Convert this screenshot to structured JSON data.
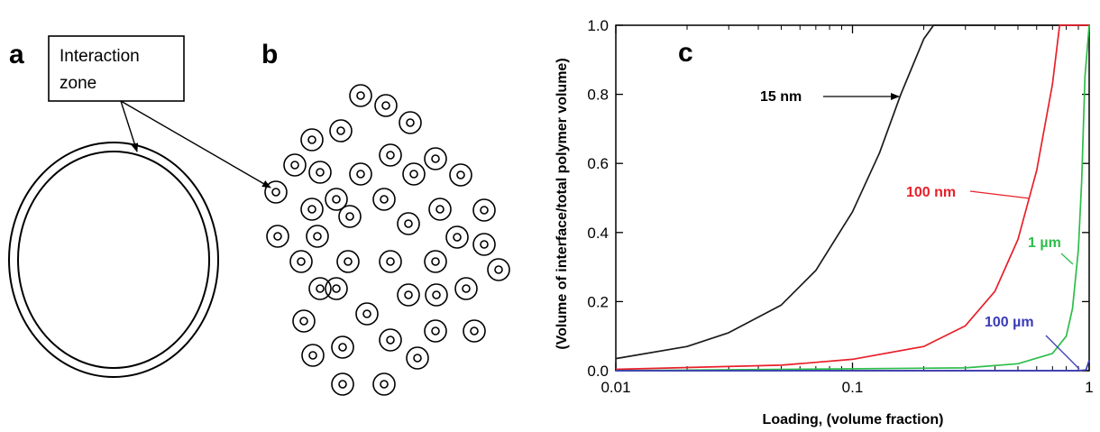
{
  "panel_a": {
    "letter": "a",
    "callout_line1": "Interaction",
    "callout_line2": "zone"
  },
  "panel_b": {
    "letter": "b"
  },
  "panel_c": {
    "letter": "c"
  },
  "chart_data": {
    "type": "line",
    "xlabel": "Loading, (volume fraction)",
    "ylabel": "(Volume of interface/total polymer volume)",
    "xscale": "log",
    "xlim": [
      0.01,
      1
    ],
    "ylim": [
      0,
      1
    ],
    "xticks": [
      0.01,
      0.1,
      1
    ],
    "xtick_labels": [
      "0.01",
      "0.1",
      "1"
    ],
    "yticks": [
      0,
      0.2,
      0.4,
      0.6,
      0.8,
      1.0
    ],
    "ytick_labels": [
      "0.0",
      "0.2",
      "0.4",
      "0.6",
      "0.8",
      "1.0"
    ],
    "grid": false,
    "series": [
      {
        "name": "15 nm",
        "color": "#1a1a1a",
        "x": [
          0.01,
          0.02,
          0.03,
          0.05,
          0.07,
          0.1,
          0.13,
          0.16,
          0.2,
          0.22,
          0.3,
          0.5,
          1.0
        ],
        "y": [
          0.035,
          0.07,
          0.11,
          0.19,
          0.29,
          0.46,
          0.63,
          0.8,
          0.96,
          1.0,
          1.0,
          1.0,
          1.0
        ]
      },
      {
        "name": "100 nm",
        "color": "#e8202a",
        "x": [
          0.01,
          0.05,
          0.1,
          0.2,
          0.3,
          0.4,
          0.5,
          0.6,
          0.7,
          0.75,
          1.0
        ],
        "y": [
          0.004,
          0.016,
          0.033,
          0.07,
          0.13,
          0.23,
          0.38,
          0.58,
          0.83,
          1.0,
          1.0
        ]
      },
      {
        "name": "1 µm",
        "color": "#2dbd4a",
        "x": [
          0.01,
          0.3,
          0.5,
          0.7,
          0.8,
          0.85,
          0.9,
          0.93,
          0.96,
          1.0
        ],
        "y": [
          0.0,
          0.008,
          0.02,
          0.05,
          0.1,
          0.18,
          0.35,
          0.55,
          0.85,
          1.0
        ]
      },
      {
        "name": "100 µm",
        "color": "#3b3bb8",
        "x": [
          0.01,
          0.5,
          0.9,
          0.97,
          1.0
        ],
        "y": [
          0.0,
          0.0,
          0.0,
          0.002,
          0.03
        ]
      }
    ]
  }
}
